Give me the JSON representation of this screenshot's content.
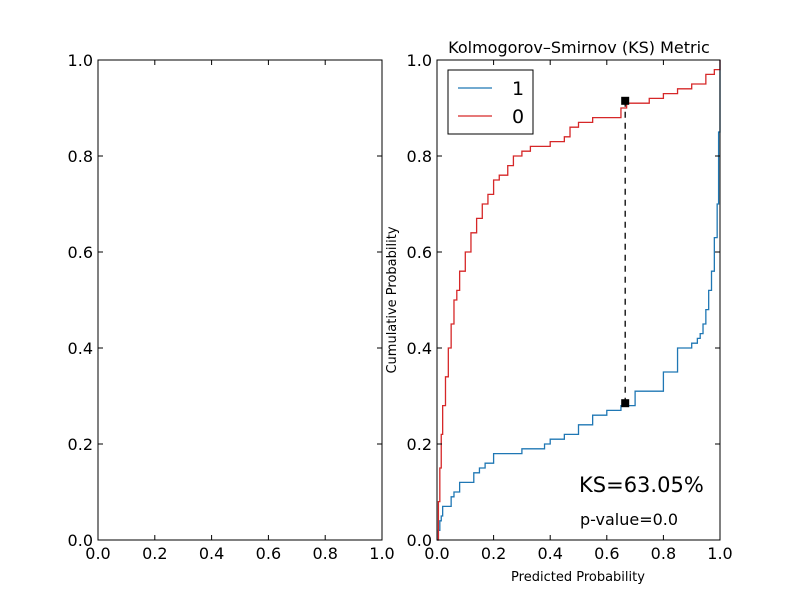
{
  "chart_data": [
    {
      "type": "line",
      "title": "",
      "xlabel": "",
      "ylabel": "",
      "xlim": [
        0,
        1
      ],
      "ylim": [
        0,
        1
      ],
      "x_ticks": [
        "0.0",
        "0.2",
        "0.4",
        "0.6",
        "0.8",
        "1.0"
      ],
      "y_ticks": [
        "0.0",
        "0.2",
        "0.4",
        "0.6",
        "0.8",
        "1.0"
      ],
      "series": []
    },
    {
      "type": "line",
      "step": true,
      "title": "Kolmogorov–Smirnov (KS) Metric",
      "xlabel": "Predicted Probability",
      "ylabel": "Cumulative Probability",
      "xlim": [
        0,
        1
      ],
      "ylim": [
        0,
        1
      ],
      "x_ticks": [
        "0.0",
        "0.2",
        "0.4",
        "0.6",
        "0.8",
        "1.0"
      ],
      "y_ticks": [
        "0.0",
        "0.2",
        "0.4",
        "0.6",
        "0.8",
        "1.0"
      ],
      "legend_position": "top-left",
      "series": [
        {
          "name": "1",
          "color": "#1f77b4",
          "x": [
            0.0,
            0.005,
            0.01,
            0.015,
            0.02,
            0.03,
            0.05,
            0.06,
            0.08,
            0.1,
            0.13,
            0.15,
            0.17,
            0.2,
            0.3,
            0.38,
            0.4,
            0.45,
            0.5,
            0.55,
            0.6,
            0.65,
            0.7,
            0.75,
            0.8,
            0.85,
            0.88,
            0.9,
            0.92,
            0.93,
            0.94,
            0.95,
            0.96,
            0.97,
            0.98,
            0.99,
            0.995,
            1.0
          ],
          "y": [
            0.0,
            0.02,
            0.04,
            0.05,
            0.07,
            0.07,
            0.09,
            0.1,
            0.12,
            0.12,
            0.14,
            0.15,
            0.16,
            0.18,
            0.19,
            0.2,
            0.21,
            0.22,
            0.24,
            0.26,
            0.27,
            0.28,
            0.31,
            0.31,
            0.35,
            0.4,
            0.4,
            0.41,
            0.42,
            0.43,
            0.45,
            0.48,
            0.52,
            0.56,
            0.63,
            0.7,
            0.85,
            1.0
          ]
        },
        {
          "name": "0",
          "color": "#d62728",
          "x": [
            0.0,
            0.005,
            0.01,
            0.015,
            0.02,
            0.03,
            0.04,
            0.05,
            0.06,
            0.07,
            0.08,
            0.1,
            0.12,
            0.14,
            0.16,
            0.18,
            0.2,
            0.22,
            0.25,
            0.27,
            0.3,
            0.33,
            0.35,
            0.4,
            0.45,
            0.47,
            0.5,
            0.55,
            0.6,
            0.65,
            0.67,
            0.7,
            0.75,
            0.8,
            0.85,
            0.9,
            0.95,
            0.98,
            1.0
          ],
          "y": [
            0.0,
            0.08,
            0.15,
            0.22,
            0.28,
            0.34,
            0.4,
            0.45,
            0.5,
            0.52,
            0.56,
            0.6,
            0.64,
            0.67,
            0.7,
            0.72,
            0.75,
            0.76,
            0.78,
            0.8,
            0.81,
            0.82,
            0.82,
            0.83,
            0.84,
            0.86,
            0.87,
            0.88,
            0.88,
            0.9,
            0.91,
            0.91,
            0.92,
            0.93,
            0.94,
            0.95,
            0.97,
            0.98,
            1.0
          ]
        }
      ],
      "ks_line": {
        "x": 0.665,
        "y_low": 0.285,
        "y_high": 0.915
      },
      "ks_label": "KS=63.05%",
      "p_value_label": "p-value=0.0"
    }
  ]
}
